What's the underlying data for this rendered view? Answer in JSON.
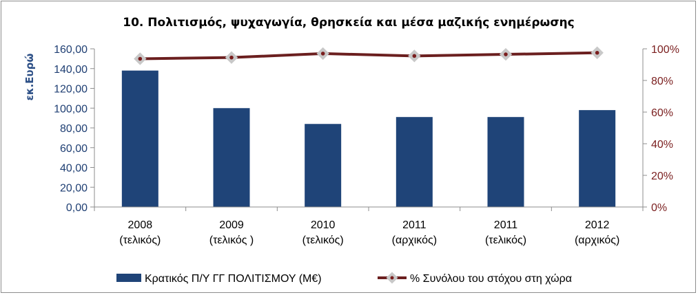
{
  "chart_data": {
    "type": "bar+line",
    "title": "10. Πολιτισμός, ψυχαγωγία, θρησκεία και μέσα μαζικής ενημέρωσης",
    "ylabel": "εκ.Ευρώ",
    "categories": [
      [
        "2008",
        "(τελικός)"
      ],
      [
        "2009",
        "(τελικός )"
      ],
      [
        "2010",
        "(τελικός)"
      ],
      [
        "2011",
        "(αρχικός)"
      ],
      [
        "2011",
        "(τελικός)"
      ],
      [
        "2012",
        "(αρχικός)"
      ]
    ],
    "series": [
      {
        "name": "Κρατικός Π/Υ ΓΓ ΠΟΛΙΤΙΣΜΟΥ (Μ€)",
        "type": "bar",
        "axis": "left",
        "color": "#1f4478",
        "values": [
          138,
          100,
          84,
          91,
          91,
          98
        ]
      },
      {
        "name": "% Συνόλου του στόχου στη χώρα",
        "type": "line",
        "axis": "right",
        "color": "#6b1f1f",
        "marker_fill": "#c8c8c8",
        "marker_center": "#7a1e1e",
        "values": [
          0.937,
          0.945,
          0.97,
          0.955,
          0.965,
          0.975
        ]
      }
    ],
    "y_left": {
      "min": 0,
      "max": 160,
      "step": 20,
      "tick_labels": [
        "0,00",
        "20,00",
        "40,00",
        "60,00",
        "80,00",
        "100,00",
        "120,00",
        "140,00",
        "160,00"
      ]
    },
    "y_right": {
      "min": 0,
      "max": 1,
      "step": 0.2,
      "tick_labels": [
        "0%",
        "20%",
        "40%",
        "60%",
        "80%",
        "100%"
      ]
    },
    "grid": false,
    "legend_position": "bottom"
  }
}
